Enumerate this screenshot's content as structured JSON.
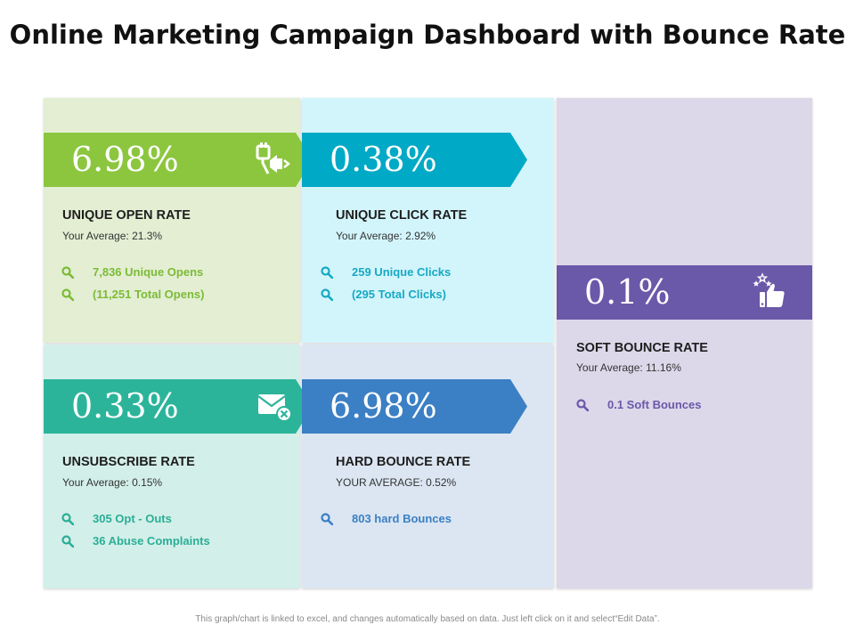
{
  "page": {
    "title": "Online Marketing Campaign Dashboard with Bounce Rate",
    "footer_note": "This graph/chart is linked to excel, and changes automatically based on data. Just left click on it and select“Edit Data”."
  },
  "cards": {
    "open_rate": {
      "value": "6.98%",
      "title": "UNIQUE OPEN RATE",
      "average": "Your Average:  21.3%",
      "details": [
        "7,836 Unique Opens",
        "(11,251 Total Opens)"
      ],
      "icon": "megaphone-icon",
      "accent": "#8cc63f",
      "panel_bg": "#e3eed3",
      "detail_color": "#7cbb36"
    },
    "click_rate": {
      "value": "0.38%",
      "title": "UNIQUE CLICK RATE",
      "average": "Your Average:  2.92%",
      "details": [
        "259 Unique Clicks",
        "(295 Total Clicks)"
      ],
      "accent": "#00a9c6",
      "panel_bg": "#d2f5fb",
      "detail_color": "#17a9c4"
    },
    "unsubscribe_rate": {
      "value": "0.33%",
      "title": "UNSUBSCRIBE RATE",
      "average": "Your Average:  0.15%",
      "details": [
        "305 Opt - Outs",
        "36 Abuse Complaints"
      ],
      "icon": "envelope-remove-icon",
      "accent": "#2cb49a",
      "panel_bg": "#d3efe9",
      "detail_color": "#2aae96"
    },
    "hard_bounce_rate": {
      "value": "6.98%",
      "title": "HARD BOUNCE RATE",
      "average": "YOUR AVERAGE: 0.52%",
      "details": [
        "803 hard Bounces"
      ],
      "accent": "#3b7fc4",
      "panel_bg": "#dbe6f2",
      "detail_color": "#3b7fc4"
    },
    "soft_bounce_rate": {
      "value": "0.1%",
      "title": "SOFT BOUNCE RATE",
      "average": "Your Average:  11.16%",
      "details": [
        "0.1 Soft Bounces"
      ],
      "icon": "thumbs-up-stars-icon",
      "accent": "#6a58a8",
      "panel_bg": "#dcd8ea",
      "detail_color": "#6a58a8"
    }
  }
}
